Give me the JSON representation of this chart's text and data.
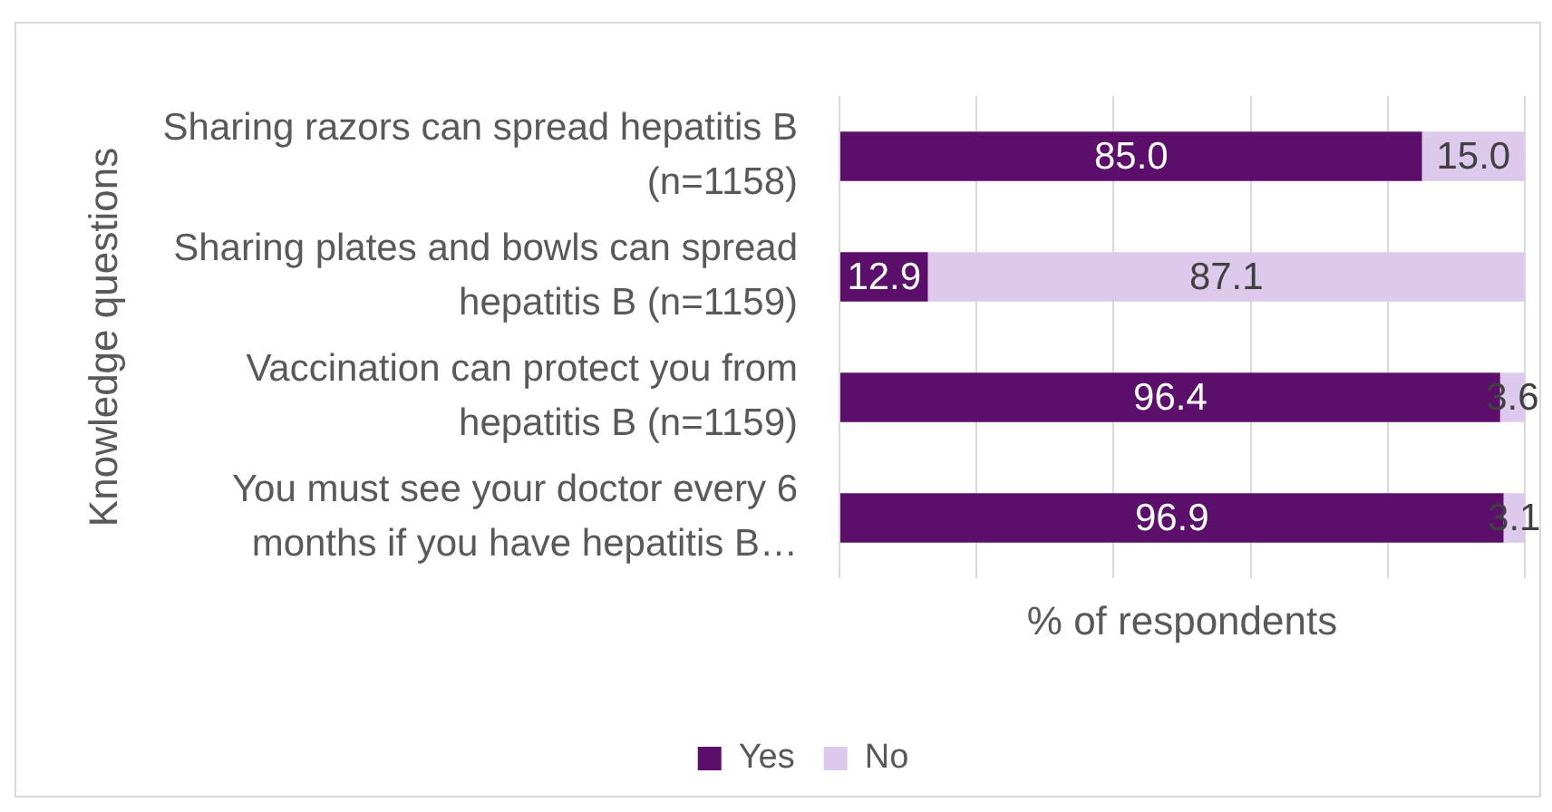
{
  "chart_data": {
    "type": "bar",
    "orientation": "horizontal",
    "stacked": true,
    "xlabel": "% of respondents",
    "ylabel": "Knowledge questions",
    "categories": [
      "Sharing razors can spread hepatitis B (n=1158)",
      "Sharing plates and bowls can spread hepatitis B (n=1159)",
      "Vaccination can protect you from hepatitis B (n=1159)",
      "You must see your doctor every 6 months if you have hepatitis B…"
    ],
    "series": [
      {
        "name": "Yes",
        "color": "#5b0f6a",
        "values": [
          85.0,
          12.9,
          96.4,
          96.9
        ],
        "value_labels": [
          "85.0",
          "12.9",
          "96.4",
          "96.9"
        ]
      },
      {
        "name": "No",
        "color": "#ddc9eb",
        "values": [
          15.0,
          87.1,
          3.6,
          3.1
        ],
        "value_labels": [
          "15.0",
          "87.1",
          "3.6",
          "3.1"
        ]
      }
    ],
    "xlim": [
      0,
      100
    ],
    "xticks": [
      {
        "value": 0,
        "label": null
      },
      {
        "value": 20,
        "label": null
      },
      {
        "value": 40,
        "label": null
      },
      {
        "value": 60,
        "label": null
      },
      {
        "value": 80,
        "label": null
      },
      {
        "value": 100,
        "label": null
      }
    ],
    "grid": "x",
    "legend": "bottom",
    "tick_labels": "y"
  }
}
